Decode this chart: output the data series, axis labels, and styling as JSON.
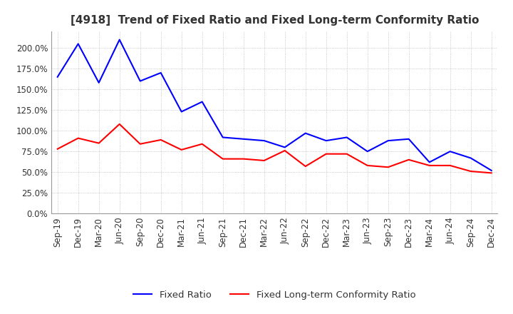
{
  "title": "[4918]  Trend of Fixed Ratio and Fixed Long-term Conformity Ratio",
  "x_labels": [
    "Sep-19",
    "Dec-19",
    "Mar-20",
    "Jun-20",
    "Sep-20",
    "Dec-20",
    "Mar-21",
    "Jun-21",
    "Sep-21",
    "Dec-21",
    "Mar-22",
    "Jun-22",
    "Sep-22",
    "Dec-22",
    "Mar-23",
    "Jun-23",
    "Sep-23",
    "Dec-23",
    "Mar-24",
    "Jun-24",
    "Sep-24",
    "Dec-24"
  ],
  "fixed_ratio": [
    1.65,
    2.05,
    1.58,
    2.1,
    1.6,
    1.7,
    1.23,
    1.35,
    0.92,
    0.9,
    0.88,
    0.8,
    0.97,
    0.88,
    0.92,
    0.75,
    0.88,
    0.9,
    0.62,
    0.75,
    0.67,
    0.52
  ],
  "fixed_lt_ratio": [
    0.78,
    0.91,
    0.85,
    1.08,
    0.84,
    0.89,
    0.77,
    0.84,
    0.66,
    0.66,
    0.64,
    0.76,
    0.57,
    0.72,
    0.72,
    0.58,
    0.56,
    0.65,
    0.58,
    0.58,
    0.51,
    0.49
  ],
  "fixed_ratio_color": "#0000FF",
  "fixed_lt_ratio_color": "#FF0000",
  "ylim": [
    0.0,
    2.2
  ],
  "yticks": [
    0.0,
    0.25,
    0.5,
    0.75,
    1.0,
    1.25,
    1.5,
    1.75,
    2.0
  ],
  "background_color": "#ffffff",
  "grid_color": "#aaaaaa",
  "title_fontsize": 11,
  "legend_fontsize": 9.5,
  "tick_fontsize": 8.5
}
